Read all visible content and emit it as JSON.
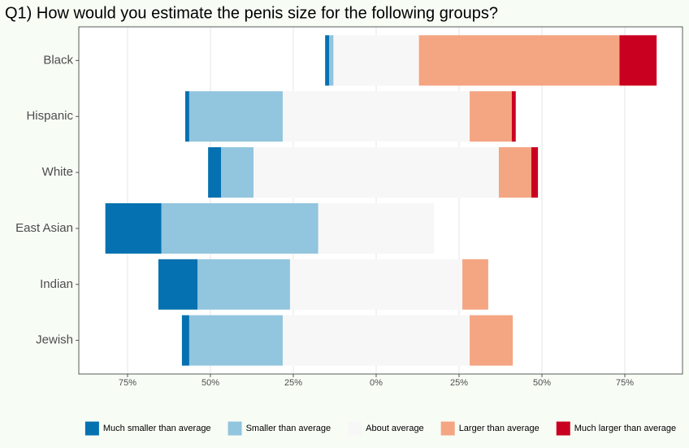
{
  "chart_data": {
    "type": "bar",
    "orientation": "horizontal",
    "diverging": true,
    "title": "Q1) How would you estimate the penis size for the following groups?",
    "categories": [
      "Black",
      "Hispanic",
      "White",
      "East Asian",
      "Indian",
      "Jewish"
    ],
    "series": [
      {
        "name": "Much smaller than average",
        "color": "#0571b0",
        "values": [
          1.2,
          1.2,
          3.9,
          16.9,
          11.8,
          2.2
        ]
      },
      {
        "name": "Smaller than average",
        "color": "#92c5de",
        "values": [
          1.3,
          28.2,
          9.8,
          47.3,
          27.9,
          28.2
        ]
      },
      {
        "name": "About average",
        "color": "#f7f7f7",
        "values": [
          25.8,
          56.4,
          74.0,
          35.0,
          52.0,
          56.4
        ]
      },
      {
        "name": "Larger than average",
        "color": "#f4a582",
        "values": [
          60.5,
          12.7,
          9.8,
          0,
          7.8,
          13.0
        ]
      },
      {
        "name": "Much larger than average",
        "color": "#ca0020",
        "values": [
          11.2,
          1.2,
          2.0,
          0,
          0,
          0
        ]
      }
    ],
    "xlim": [
      -89.7,
      92.4
    ],
    "xticks": [
      {
        "value": -75,
        "label": "75%"
      },
      {
        "value": -50,
        "label": "50%"
      },
      {
        "value": -25,
        "label": "25%"
      },
      {
        "value": 0,
        "label": "0%"
      },
      {
        "value": 25,
        "label": "25%"
      },
      {
        "value": 50,
        "label": "50%"
      },
      {
        "value": 75,
        "label": "75%"
      }
    ],
    "grid": true,
    "legend_position": "bottom"
  }
}
